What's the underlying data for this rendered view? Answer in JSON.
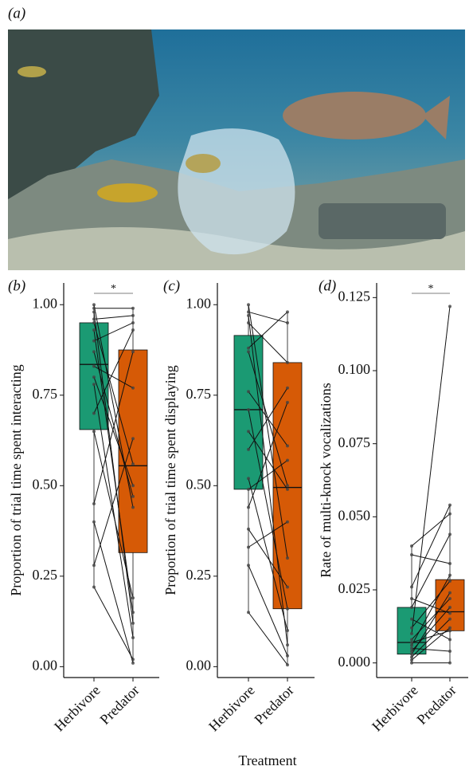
{
  "figure": {
    "photo_label": "(a)",
    "xlabel": "Treatment"
  },
  "chart_data": [
    {
      "type": "box",
      "label": "(b)",
      "ylabel": "Proportion of trial time spent interacting",
      "categories": [
        "Herbivore",
        "Predator"
      ],
      "colors": [
        "#1b9a73",
        "#d65a06"
      ],
      "boxes": [
        {
          "whislo": 0.22,
          "q1": 0.655,
          "median": 0.835,
          "q3": 0.95,
          "whishi": 1.0
        },
        {
          "whislo": 0.01,
          "q1": 0.315,
          "median": 0.555,
          "q3": 0.875,
          "whishi": 0.99
        }
      ],
      "points": [
        [
          1.0,
          0.99,
          0.98,
          0.96,
          0.95,
          0.93,
          0.9,
          0.87,
          0.83,
          0.8,
          0.78,
          0.7,
          0.65,
          0.45,
          0.4,
          0.28,
          0.22
        ],
        [
          0.44,
          0.99,
          0.12,
          0.97,
          0.56,
          0.15,
          0.95,
          0.47,
          0.77,
          0.5,
          0.08,
          0.93,
          0.19,
          0.87,
          0.01,
          0.63,
          0.02
        ]
      ],
      "ylim": [
        -0.03,
        1.06
      ],
      "yticks": [
        {
          "value": 0,
          "label": "0.00"
        },
        {
          "value": 0.25,
          "label": "0.25"
        },
        {
          "value": 0.5,
          "label": "0.50"
        },
        {
          "value": 0.75,
          "label": "0.75"
        },
        {
          "value": 1,
          "label": "1.00"
        }
      ],
      "significance": "*"
    },
    {
      "type": "box",
      "label": "(c)",
      "ylabel": "Proportion of trial time spent displaying",
      "categories": [
        "Herbivore",
        "Predator"
      ],
      "colors": [
        "#1b9a73",
        "#d65a06"
      ],
      "boxes": [
        {
          "whislo": 0.15,
          "q1": 0.49,
          "median": 0.71,
          "q3": 0.915,
          "whishi": 1.0
        },
        {
          "whislo": 0.005,
          "q1": 0.16,
          "median": 0.495,
          "q3": 0.84,
          "whishi": 0.98
        }
      ],
      "points": [
        [
          1.0,
          0.98,
          0.97,
          0.95,
          0.88,
          0.87,
          0.76,
          0.71,
          0.65,
          0.6,
          0.52,
          0.49,
          0.44,
          0.38,
          0.33,
          0.28,
          0.15
        ],
        [
          0.3,
          0.95,
          0.06,
          0.84,
          0.98,
          0.5,
          0.61,
          0.16,
          0.49,
          0.77,
          0.1,
          0.57,
          0.73,
          0.22,
          0.4,
          0.03,
          0.005
        ]
      ],
      "ylim": [
        -0.03,
        1.06
      ],
      "yticks": [
        {
          "value": 0,
          "label": "0.00"
        },
        {
          "value": 0.25,
          "label": "0.25"
        },
        {
          "value": 0.5,
          "label": "0.50"
        },
        {
          "value": 0.75,
          "label": "0.75"
        },
        {
          "value": 1,
          "label": "1.00"
        }
      ]
    },
    {
      "type": "box",
      "label": "(d)",
      "ylabel": "Rate of multi-knock vocalizations",
      "categories": [
        "Herbivore",
        "Predator"
      ],
      "colors": [
        "#1b9a73",
        "#d65a06"
      ],
      "boxes": [
        {
          "whislo": 0.0,
          "q1": 0.003,
          "median": 0.007,
          "q3": 0.019,
          "whishi": 0.04
        },
        {
          "whislo": 0.0,
          "q1": 0.011,
          "median": 0.0175,
          "q3": 0.0285,
          "whishi": 0.054
        }
      ],
      "points": [
        [
          0.04,
          0.037,
          0.026,
          0.022,
          0.019,
          0.015,
          0.012,
          0.01,
          0.008,
          0.007,
          0.006,
          0.005,
          0.004,
          0.003,
          0.002,
          0.001,
          0.0
        ],
        [
          0.051,
          0.034,
          0.054,
          0.017,
          0.044,
          0.008,
          0.028,
          0.122,
          0.022,
          0.011,
          0.03,
          0.004,
          0.019,
          0.024,
          0.015,
          0.012,
          0.0
        ]
      ],
      "ylim": [
        -0.005,
        0.13
      ],
      "yticks": [
        {
          "value": 0,
          "label": "0.000"
        },
        {
          "value": 0.025,
          "label": "0.025"
        },
        {
          "value": 0.05,
          "label": "0.050"
        },
        {
          "value": 0.075,
          "label": "0.075"
        },
        {
          "value": 0.1,
          "label": "0.100"
        },
        {
          "value": 0.125,
          "label": "0.125"
        }
      ],
      "significance": "*"
    }
  ]
}
